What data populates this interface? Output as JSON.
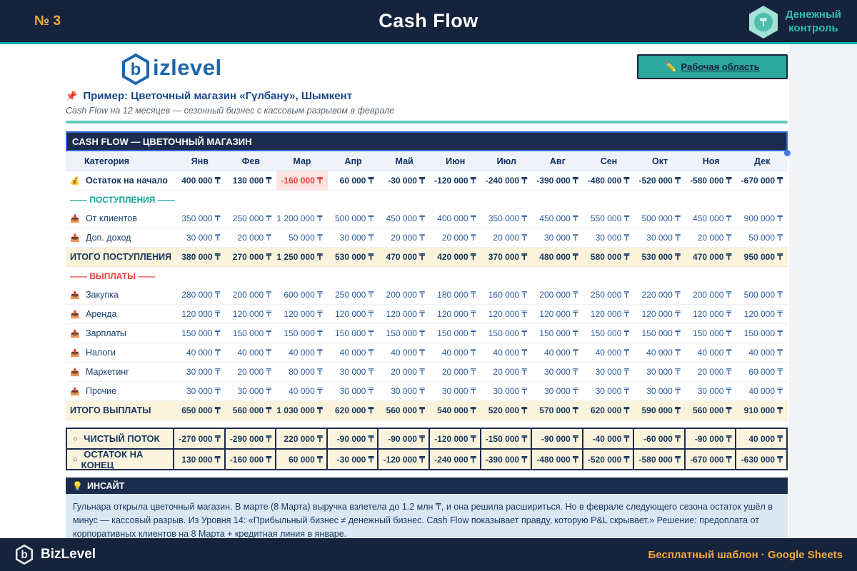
{
  "header": {
    "number": "№ 3",
    "title": "Cash Flow",
    "badge": {
      "line1": "Денежный",
      "line2": "контроль",
      "symbol": "₸"
    }
  },
  "sheet": {
    "logo_text": "izlevel",
    "logo_letter": "b",
    "workspace_button": {
      "icon": "✏️",
      "label": "Рабочая область"
    },
    "example_title": "Пример: Цветочный магазин «Гүлбану», Шымкент",
    "pin_icon": "📌",
    "subtitle": "Cash Flow на 12 месяцев — сезонный бизнес с кассовым разрывом в феврале",
    "table_title": "CASH FLOW — ЦВЕТОЧНЫЙ МАГАЗИН"
  },
  "table": {
    "currency": "₸",
    "columns": [
      "Категория",
      "Янв",
      "Фев",
      "Мар",
      "Апр",
      "Май",
      "Июн",
      "Июл",
      "Авг",
      "Сен",
      "Окт",
      "Ноя",
      "Дек"
    ],
    "rows": [
      {
        "type": "data",
        "bold": true,
        "icon": "💰",
        "icon_name": "moneybag-icon",
        "label": "Остаток на начало",
        "highlight_cell": 2,
        "values": [
          400000,
          130000,
          -160000,
          60000,
          -30000,
          -120000,
          -240000,
          -390000,
          -480000,
          -520000,
          -580000,
          -670000
        ]
      },
      {
        "type": "section",
        "color": "teal",
        "label": "—— ПОСТУПЛЕНИЯ ——"
      },
      {
        "type": "data",
        "icon": "📥",
        "icon_name": "inbox-tray-icon",
        "label": "От клиентов",
        "values": [
          350000,
          250000,
          1200000,
          500000,
          450000,
          400000,
          350000,
          450000,
          550000,
          500000,
          450000,
          900000
        ]
      },
      {
        "type": "data",
        "icon": "📥",
        "icon_name": "inbox-tray-icon",
        "label": "Доп. доход",
        "values": [
          30000,
          20000,
          50000,
          30000,
          20000,
          20000,
          20000,
          30000,
          30000,
          30000,
          20000,
          50000
        ]
      },
      {
        "type": "total",
        "label": "ИТОГО ПОСТУПЛЕНИЯ",
        "values": [
          380000,
          270000,
          1250000,
          530000,
          470000,
          420000,
          370000,
          480000,
          580000,
          530000,
          470000,
          950000
        ]
      },
      {
        "type": "section",
        "color": "red",
        "label": "—— ВЫПЛАТЫ ——"
      },
      {
        "type": "data",
        "icon": "📤",
        "icon_name": "outbox-tray-icon",
        "label": "Закупка",
        "values": [
          280000,
          200000,
          600000,
          250000,
          200000,
          180000,
          160000,
          200000,
          250000,
          220000,
          200000,
          500000
        ]
      },
      {
        "type": "data",
        "icon": "📤",
        "icon_name": "outbox-tray-icon",
        "label": "Аренда",
        "values": [
          120000,
          120000,
          120000,
          120000,
          120000,
          120000,
          120000,
          120000,
          120000,
          120000,
          120000,
          120000
        ]
      },
      {
        "type": "data",
        "icon": "📤",
        "icon_name": "outbox-tray-icon",
        "label": "Зарплаты",
        "values": [
          150000,
          150000,
          150000,
          150000,
          150000,
          150000,
          150000,
          150000,
          150000,
          150000,
          150000,
          150000
        ]
      },
      {
        "type": "data",
        "icon": "📤",
        "icon_name": "outbox-tray-icon",
        "label": "Налоги",
        "values": [
          40000,
          40000,
          40000,
          40000,
          40000,
          40000,
          40000,
          40000,
          40000,
          40000,
          40000,
          40000
        ]
      },
      {
        "type": "data",
        "icon": "📤",
        "icon_name": "outbox-tray-icon",
        "label": "Маркетинг",
        "values": [
          30000,
          20000,
          80000,
          30000,
          20000,
          20000,
          20000,
          30000,
          30000,
          30000,
          20000,
          60000
        ]
      },
      {
        "type": "data",
        "icon": "📤",
        "icon_name": "outbox-tray-icon",
        "label": "Прочие",
        "values": [
          30000,
          30000,
          40000,
          30000,
          30000,
          30000,
          30000,
          30000,
          30000,
          30000,
          30000,
          40000
        ]
      },
      {
        "type": "total",
        "label": "ИТОГО ВЫПЛАТЫ",
        "values": [
          650000,
          560000,
          1030000,
          620000,
          560000,
          540000,
          520000,
          570000,
          620000,
          590000,
          560000,
          910000
        ]
      }
    ],
    "outlined_rows": [
      {
        "bullet": "○",
        "label": "ЧИСТЫЙ ПОТОК",
        "values": [
          -270000,
          -290000,
          220000,
          -90000,
          -90000,
          -120000,
          -150000,
          -90000,
          -40000,
          -60000,
          -90000,
          40000
        ]
      },
      {
        "bullet": "○",
        "label": "ОСТАТОК НА КОНЕЦ",
        "values": [
          130000,
          -160000,
          60000,
          -30000,
          -120000,
          -240000,
          -390000,
          -480000,
          -520000,
          -580000,
          -670000,
          -630000
        ]
      }
    ]
  },
  "insight": {
    "icon": "💡",
    "title": "ИНСАЙТ",
    "body": "Гульнара открыла цветочный магазин. В марте (8 Марта) выручка взлетела до 1.2 млн ₸, и она решила расшириться. Но в феврале следующего сезона остаток ушёл в минус — кассовый разрыв. Из Уровня 14: «Прибыльный бизнес ≠ денежный бизнес. Cash Flow показывает правду, которую P&L скрывает.» Решение: предоплата от корпоративных клиентов на 8 Марта + кредитная линия в январе."
  },
  "footer": {
    "brand": "BizLevel",
    "note": "Бесплатный шаблон · Google Sheets"
  },
  "colors": {
    "navy": "#16233D",
    "teal": "#00B3A4",
    "orange": "#F2A93B",
    "value_blue": "#2B5C9D",
    "negative_red": "#E8413A",
    "cream": "#FCF3DC"
  }
}
